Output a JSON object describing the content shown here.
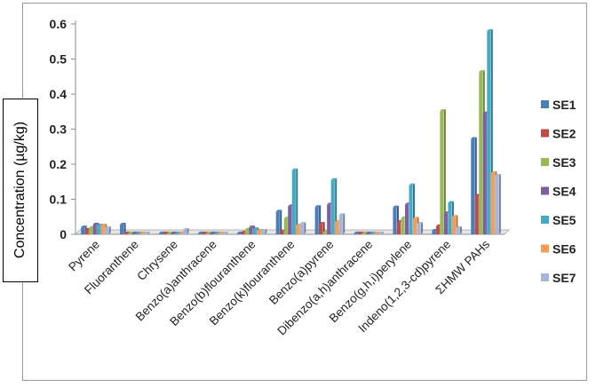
{
  "chart_data": {
    "type": "bar",
    "title": "",
    "xlabel": "",
    "ylabel": "Concentration (µg/kg)",
    "ylim": [
      0,
      0.6
    ],
    "yticks": [
      "0",
      "0.1",
      "0.2",
      "0.3",
      "0.4",
      "0.5",
      "0.6"
    ],
    "grid": false,
    "legend_position": "right",
    "categories": [
      "Pyrene",
      "Fluoranthene",
      "Chrysene",
      "Benzo(a)anthracene",
      "Benzo(b)flouranthene",
      "Benzo(k)flouranthene",
      "Benzo(a)pyrene",
      "Dibenzo(a,h)anthracene",
      "Benzo(g,h,i)perylene",
      "Indeno(1,2,3-cd)pyrene",
      "ΣHMW PAHs"
    ],
    "series": [
      {
        "name": "SE1",
        "color": "#4a7ebb",
        "values": [
          0.02,
          0.028,
          0.003,
          0.003,
          0.003,
          0.065,
          0.078,
          0.003,
          0.077,
          0.01,
          0.272
        ]
      },
      {
        "name": "SE2",
        "color": "#be4b48",
        "values": [
          0.013,
          0.003,
          0.003,
          0.003,
          0.005,
          0.008,
          0.03,
          0.003,
          0.035,
          0.023,
          0.11
        ]
      },
      {
        "name": "SE3",
        "color": "#98b954",
        "values": [
          0.018,
          0.003,
          0.003,
          0.003,
          0.013,
          0.045,
          0.006,
          0.003,
          0.046,
          0.352,
          0.463
        ]
      },
      {
        "name": "SE4",
        "color": "#7d60a0",
        "values": [
          0.028,
          0.003,
          0.003,
          0.003,
          0.02,
          0.08,
          0.085,
          0.003,
          0.085,
          0.06,
          0.345
        ]
      },
      {
        "name": "SE5",
        "color": "#46aac5",
        "values": [
          0.025,
          0.003,
          0.003,
          0.003,
          0.015,
          0.183,
          0.155,
          0.003,
          0.14,
          0.09,
          0.58
        ]
      },
      {
        "name": "SE6",
        "color": "#f59d56",
        "values": [
          0.025,
          0.003,
          0.003,
          0.003,
          0.01,
          0.025,
          0.035,
          0.003,
          0.045,
          0.05,
          0.175
        ]
      },
      {
        "name": "SE7",
        "color": "#a5b6d9",
        "values": [
          0.018,
          0.003,
          0.013,
          0.003,
          0.01,
          0.03,
          0.055,
          0.003,
          0.03,
          0.018,
          0.167
        ]
      }
    ]
  }
}
